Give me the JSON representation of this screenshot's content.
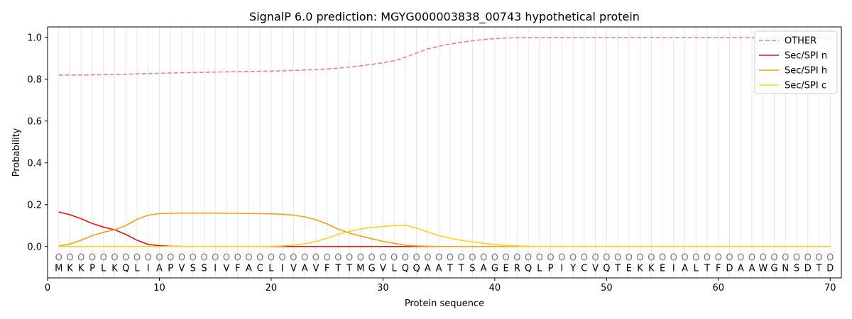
{
  "chart_data": {
    "type": "line",
    "title": "SignalP 6.0 prediction: MGYG000003838_00743 hypothetical protein",
    "xlabel": "Protein sequence",
    "ylabel": "Probability",
    "xlim": [
      0,
      71
    ],
    "ylim": [
      -0.15,
      1.05
    ],
    "xticks": [
      0,
      10,
      20,
      30,
      40,
      50,
      60,
      70
    ],
    "yticks": [
      0.0,
      0.2,
      0.4,
      0.6,
      0.8,
      1.0
    ],
    "x_tick_labels": [
      "0",
      "10",
      "20",
      "30",
      "40",
      "50",
      "60",
      "70"
    ],
    "y_tick_labels": [
      "0.0",
      "0.2",
      "0.4",
      "0.6",
      "0.8",
      "1.0"
    ],
    "grid": "vertical lines at each residue",
    "legend_position": "top-right",
    "residues": [
      "M",
      "K",
      "K",
      "P",
      "L",
      "K",
      "Q",
      "L",
      "I",
      "A",
      "P",
      "V",
      "S",
      "S",
      "I",
      "V",
      "F",
      "A",
      "C",
      "L",
      "I",
      "V",
      "A",
      "V",
      "F",
      "T",
      "T",
      "M",
      "G",
      "V",
      "L",
      "Q",
      "Q",
      "A",
      "A",
      "T",
      "T",
      "S",
      "A",
      "G",
      "E",
      "R",
      "Q",
      "L",
      "P",
      "I",
      "Y",
      "C",
      "V",
      "Q",
      "T",
      "E",
      "K",
      "K",
      "E",
      "I",
      "A",
      "L",
      "T",
      "F",
      "D",
      "A",
      "A",
      "W",
      "G",
      "N",
      "S",
      "D",
      "T",
      "D"
    ],
    "annotation_label": "O",
    "series": [
      {
        "name": "OTHER",
        "color": "#f08080",
        "dash": true,
        "values": [
          0.82,
          0.82,
          0.82,
          0.821,
          0.822,
          0.823,
          0.824,
          0.826,
          0.827,
          0.828,
          0.83,
          0.831,
          0.832,
          0.833,
          0.834,
          0.835,
          0.836,
          0.837,
          0.838,
          0.839,
          0.84,
          0.842,
          0.844,
          0.846,
          0.849,
          0.853,
          0.858,
          0.864,
          0.871,
          0.879,
          0.888,
          0.905,
          0.925,
          0.945,
          0.958,
          0.968,
          0.977,
          0.984,
          0.99,
          0.994,
          0.997,
          0.998,
          0.999,
          0.999,
          1.0,
          1.0,
          1.0,
          1.0,
          1.0,
          1.0,
          1.0,
          1.0,
          1.0,
          1.0,
          1.0,
          1.0,
          1.0,
          1.0,
          1.0,
          1.0,
          1.0,
          0.999,
          0.998,
          0.998,
          0.998,
          0.998,
          0.998,
          0.998,
          0.998,
          0.998
        ]
      },
      {
        "name": "Sec/SPI n",
        "color": "#e8130e",
        "dash": false,
        "values": [
          0.165,
          0.152,
          0.133,
          0.11,
          0.093,
          0.08,
          0.058,
          0.03,
          0.01,
          0.004,
          0.001,
          0.0,
          0.0,
          0.0,
          0.0,
          0.0,
          0.0,
          0.0,
          0.0,
          0.0,
          0.0,
          0.0,
          0.0,
          0.0,
          0.0,
          0.0,
          0.0,
          0.0,
          0.0,
          0.0,
          0.0,
          0.0,
          0.0,
          0.0,
          0.0,
          0.0,
          0.0,
          0.0,
          0.0,
          0.0,
          0.0,
          0.0,
          0.0,
          0.0,
          0.0,
          0.0,
          0.0,
          0.0,
          0.0,
          0.0,
          0.0,
          0.0,
          0.0,
          0.0,
          0.0,
          0.0,
          0.0,
          0.0,
          0.0,
          0.0,
          0.0,
          0.0,
          0.0,
          0.0,
          0.0,
          0.0,
          0.0,
          0.0,
          0.0,
          0.0
        ]
      },
      {
        "name": "Sec/SPI h",
        "color": "#f5a00f",
        "dash": false,
        "values": [
          0.002,
          0.012,
          0.03,
          0.052,
          0.068,
          0.08,
          0.1,
          0.13,
          0.15,
          0.157,
          0.159,
          0.16,
          0.16,
          0.16,
          0.16,
          0.159,
          0.159,
          0.158,
          0.157,
          0.156,
          0.154,
          0.15,
          0.142,
          0.128,
          0.108,
          0.083,
          0.064,
          0.05,
          0.037,
          0.025,
          0.015,
          0.006,
          0.003,
          0.001,
          0.0,
          0.0,
          0.0,
          0.0,
          0.0,
          0.0,
          0.0,
          0.0,
          0.0,
          0.0,
          0.0,
          0.0,
          0.0,
          0.0,
          0.0,
          0.0,
          0.0,
          0.0,
          0.0,
          0.0,
          0.0,
          0.0,
          0.0,
          0.0,
          0.0,
          0.0,
          0.0,
          0.0,
          0.0,
          0.0,
          0.0,
          0.0,
          0.0,
          0.0,
          0.0,
          0.0
        ]
      },
      {
        "name": "Sec/SPI c",
        "color": "#ffd21a",
        "dash": false,
        "values": [
          0.0,
          0.0,
          0.0,
          0.0,
          0.0,
          0.0,
          0.0,
          0.0,
          0.0,
          0.0,
          0.0,
          0.0,
          0.0,
          0.0,
          0.0,
          0.0,
          0.0,
          0.0,
          0.0,
          0.001,
          0.003,
          0.007,
          0.013,
          0.024,
          0.04,
          0.058,
          0.072,
          0.083,
          0.092,
          0.096,
          0.1,
          0.102,
          0.088,
          0.07,
          0.052,
          0.04,
          0.03,
          0.022,
          0.015,
          0.009,
          0.005,
          0.003,
          0.001,
          0.0,
          0.0,
          0.0,
          0.0,
          0.0,
          0.0,
          0.0,
          0.0,
          0.0,
          0.0,
          0.0,
          0.0,
          0.0,
          0.0,
          0.0,
          0.0,
          0.0,
          0.0,
          0.0,
          0.0,
          0.0,
          0.0,
          0.0,
          0.0,
          0.0,
          0.0,
          0.0
        ]
      }
    ]
  }
}
